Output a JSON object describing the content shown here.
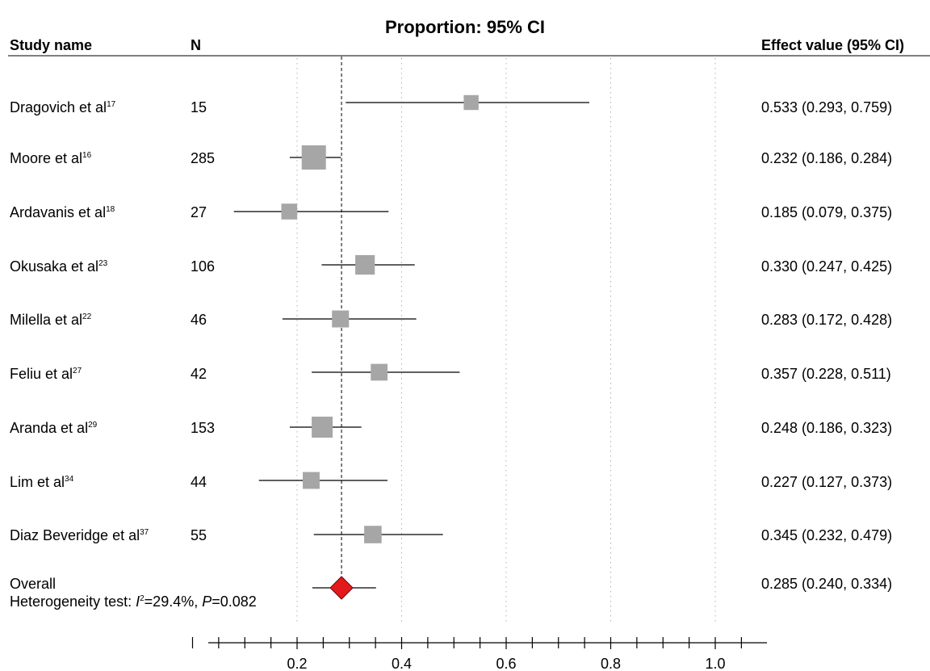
{
  "chart_data": {
    "type": "forest",
    "title": "Proportion: 95% CI",
    "columns": {
      "study": "Study name",
      "n": "N",
      "effect": "Effect value (95% CI)"
    },
    "x_ticks": [
      "0.2",
      "0.4",
      "0.6",
      "0.8",
      "1.0"
    ],
    "xlim": [
      0.04,
      1.1
    ],
    "reference_line": 0.285,
    "studies": [
      {
        "name": "Dragovich et al",
        "ref": "17",
        "n": "15",
        "estimate": 0.533,
        "lower": 0.293,
        "upper": 0.759,
        "label": "0.533 (0.293, 0.759)"
      },
      {
        "name": "Moore et al",
        "ref": "16",
        "n": "285",
        "estimate": 0.232,
        "lower": 0.186,
        "upper": 0.284,
        "label": "0.232 (0.186, 0.284)"
      },
      {
        "name": "Ardavanis et al",
        "ref": "18",
        "n": "27",
        "estimate": 0.185,
        "lower": 0.079,
        "upper": 0.375,
        "label": "0.185 (0.079, 0.375)"
      },
      {
        "name": "Okusaka et al",
        "ref": "23",
        "n": "106",
        "estimate": 0.33,
        "lower": 0.247,
        "upper": 0.425,
        "label": "0.330 (0.247, 0.425)"
      },
      {
        "name": "Milella et al",
        "ref": "22",
        "n": "46",
        "estimate": 0.283,
        "lower": 0.172,
        "upper": 0.428,
        "label": "0.283 (0.172, 0.428)"
      },
      {
        "name": "Feliu et al",
        "ref": "27",
        "n": "42",
        "estimate": 0.357,
        "lower": 0.228,
        "upper": 0.511,
        "label": "0.357 (0.228, 0.511)"
      },
      {
        "name": "Aranda et al",
        "ref": "29",
        "n": "153",
        "estimate": 0.248,
        "lower": 0.186,
        "upper": 0.323,
        "label": "0.248 (0.186, 0.323)"
      },
      {
        "name": "Lim et al",
        "ref": "34",
        "n": "44",
        "estimate": 0.227,
        "lower": 0.127,
        "upper": 0.373,
        "label": "0.227 (0.127, 0.373)"
      },
      {
        "name": "Diaz Beveridge et al",
        "ref": "37",
        "n": "55",
        "estimate": 0.345,
        "lower": 0.232,
        "upper": 0.479,
        "label": "0.345 (0.232, 0.479)"
      }
    ],
    "overall": {
      "name": "Overall",
      "estimate": 0.285,
      "lower": 0.24,
      "upper": 0.334,
      "label": "0.285 (0.240, 0.334)"
    },
    "heterogeneity": {
      "prefix": "Heterogeneity test: ",
      "i_symbol": "I",
      "i_exp": "2",
      "i_value": "=29.4%, ",
      "p_symbol": "P",
      "p_value": "=0.082"
    },
    "colors": {
      "square": "#a6a6a6",
      "diamond": "#e31a1c",
      "line": "#000000",
      "grid": "#b0b0b0"
    }
  }
}
